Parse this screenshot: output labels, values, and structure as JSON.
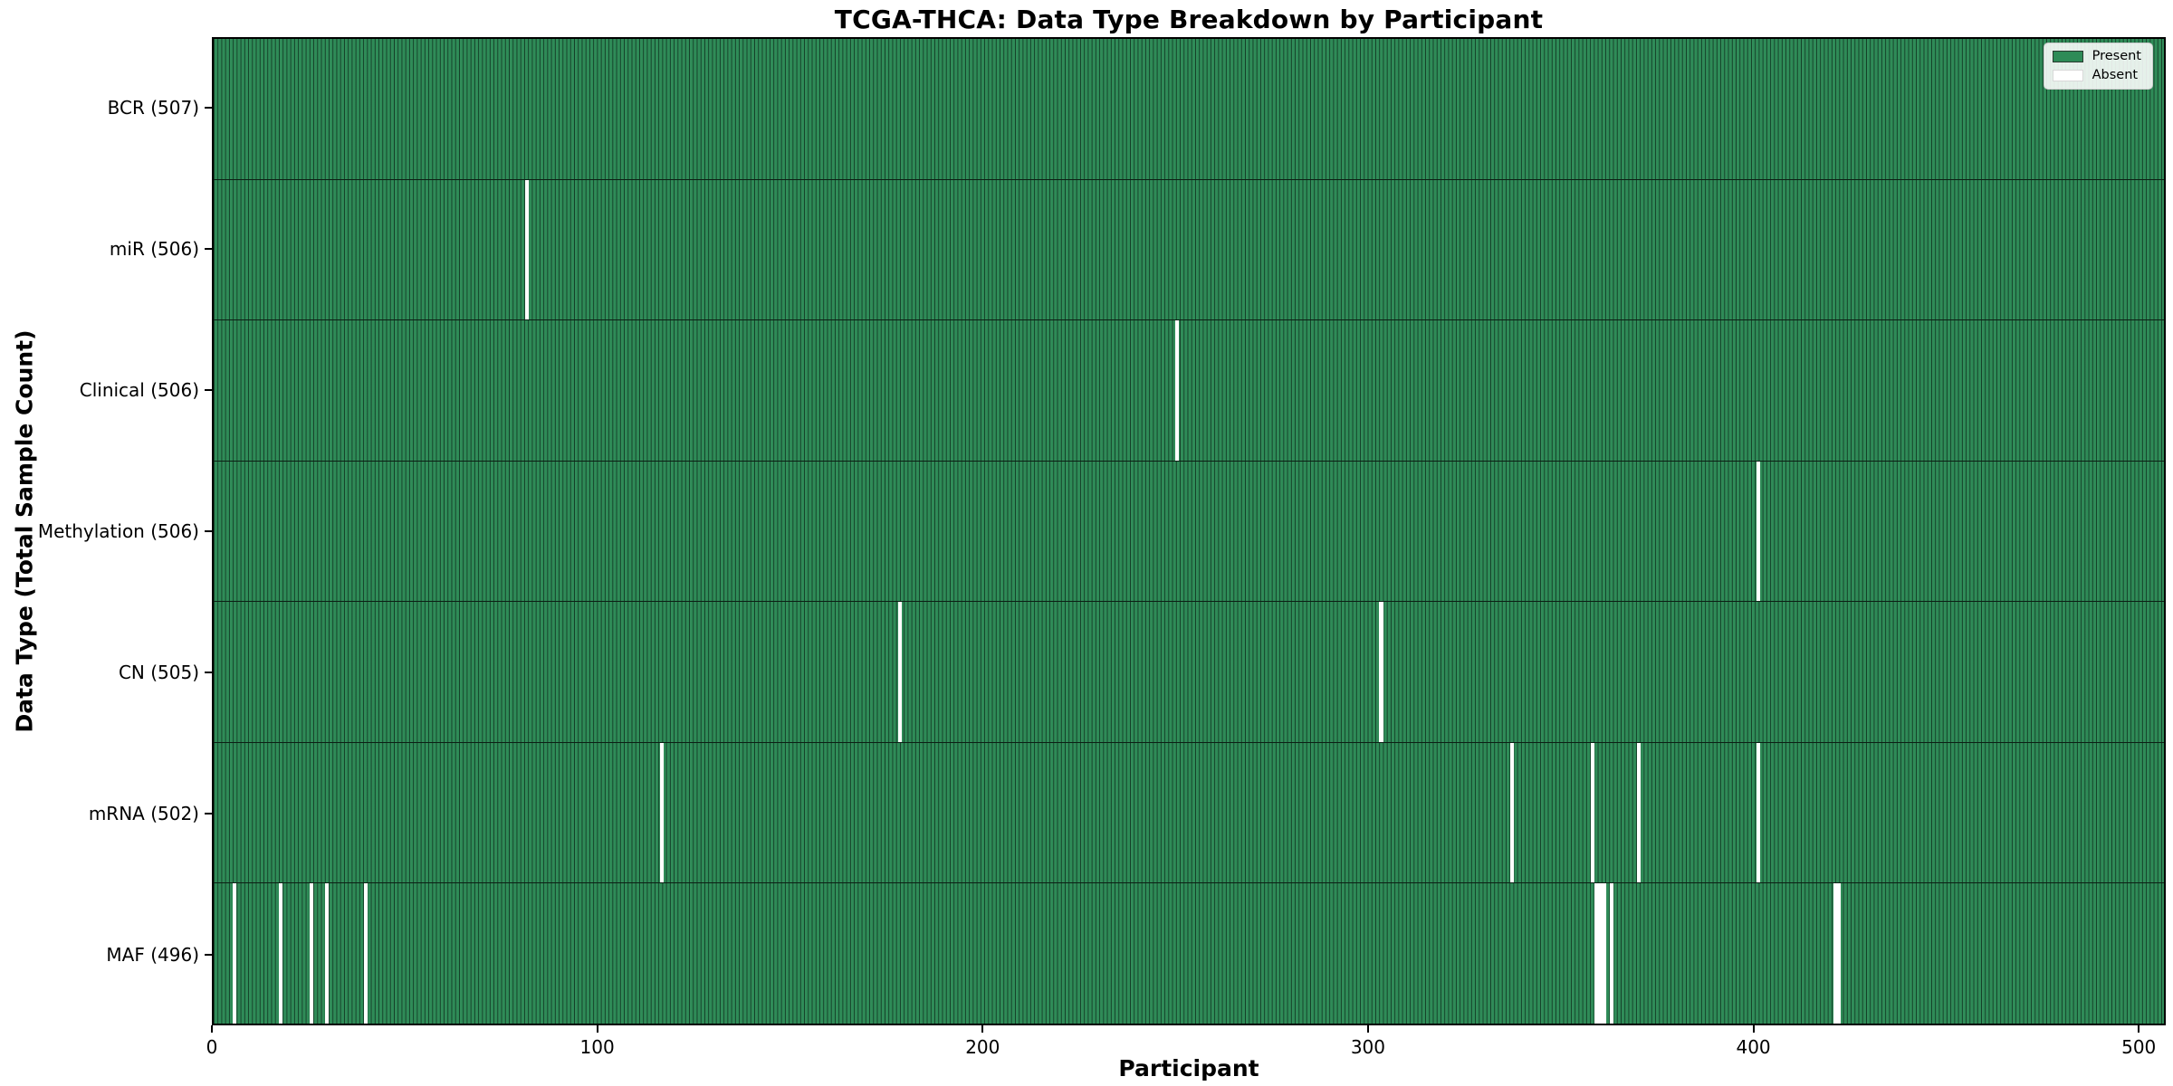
{
  "title": "TCGA-THCA: Data Type Breakdown by Participant",
  "axes": {
    "xlabel": "Participant",
    "ylabel": "Data Type (Total Sample Count)"
  },
  "legend": {
    "position": "upper right",
    "present_label": "Present",
    "absent_label": "Absent"
  },
  "colors": {
    "present": "#2e8b57",
    "absent": "#ffffff",
    "bar_edge": "#0c1f14",
    "spine": "#000000",
    "legend_border": "#cccccc"
  },
  "chart_data": {
    "type": "heatmap",
    "title": "TCGA-THCA: Data Type Breakdown by Participant",
    "xlabel": "Participant",
    "ylabel": "Data Type (Total Sample Count)",
    "legend": [
      "Present",
      "Absent"
    ],
    "legend_position": "upper right",
    "grid": false,
    "n_participants": 507,
    "x_ticks": [
      0,
      100,
      200,
      300,
      400,
      500
    ],
    "xlim": [
      0,
      507
    ],
    "rows": [
      {
        "label": "BCR (507)",
        "data_type": "BCR",
        "total": 507,
        "absent_count": 0,
        "absent_participants": []
      },
      {
        "label": "miR (506)",
        "data_type": "miR",
        "total": 506,
        "absent_count": 1,
        "absent_participants": [
          81
        ]
      },
      {
        "label": "Clinical (506)",
        "data_type": "Clinical",
        "total": 506,
        "absent_count": 1,
        "absent_participants": [
          250
        ]
      },
      {
        "label": "Methylation (506)",
        "data_type": "Methylation",
        "total": 506,
        "absent_count": 1,
        "absent_participants": [
          401
        ]
      },
      {
        "label": "CN (505)",
        "data_type": "CN",
        "total": 505,
        "absent_count": 2,
        "absent_participants": [
          178,
          303
        ]
      },
      {
        "label": "mRNA (502)",
        "data_type": "mRNA",
        "total": 502,
        "absent_count": 5,
        "absent_participants": [
          116,
          337,
          358,
          370,
          401
        ]
      },
      {
        "label": "MAF (496)",
        "data_type": "MAF",
        "total": 496,
        "absent_count": 11,
        "absent_participants": [
          5,
          17,
          25,
          29,
          39,
          359,
          360,
          361,
          363,
          421,
          422
        ]
      }
    ]
  }
}
